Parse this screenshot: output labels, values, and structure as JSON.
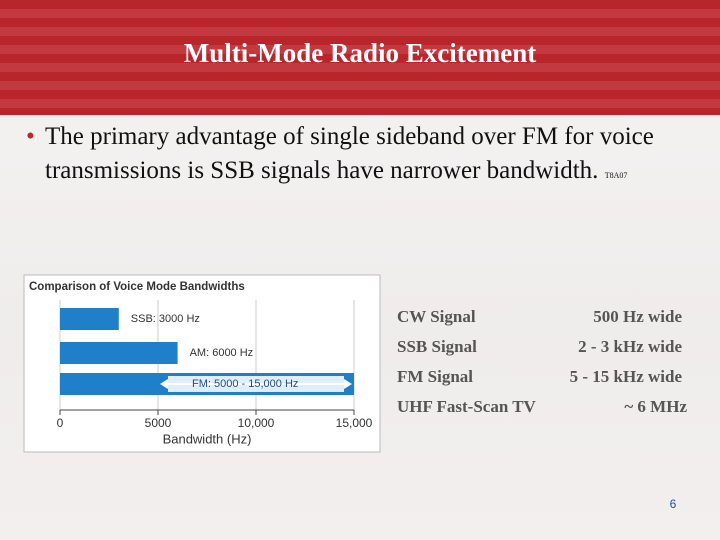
{
  "header": {
    "title": "Multi-Mode Radio Excitement"
  },
  "bullet": {
    "text": "The primary advantage of single sideband over FM for voice transmissions is SSB signals have narrower bandwidth.",
    "tag": "T8A07"
  },
  "chart_data": {
    "type": "bar",
    "title": "Comparison of Voice Mode Bandwidths",
    "categories": [
      "SSB",
      "AM",
      "FM"
    ],
    "values": [
      3000,
      6000,
      15000
    ],
    "value_labels": [
      "SSB: 3000 Hz",
      "AM: 6000 Hz",
      "FM: 5000 - 15,000 Hz"
    ],
    "arrow": {
      "from": 5000,
      "to": 15000
    },
    "color": "#1f7fc9",
    "x_label": "Bandwidth (Hz)",
    "xlim": [
      0,
      15000
    ],
    "xticks": [
      0,
      5000,
      {
        "value": 10000,
        "label": "10,000"
      },
      {
        "value": 15000,
        "label": "15,000"
      }
    ],
    "grid": true
  },
  "table": {
    "rows": [
      [
        "CW Signal",
        "500 Hz wide"
      ],
      [
        "SSB Signal",
        "2 - 3 kHz wide"
      ],
      [
        "FM Signal",
        "5 - 15 kHz wide"
      ],
      [
        "UHF Fast-Scan TV",
        "~ 6 MHz"
      ]
    ]
  },
  "page_number": "6"
}
